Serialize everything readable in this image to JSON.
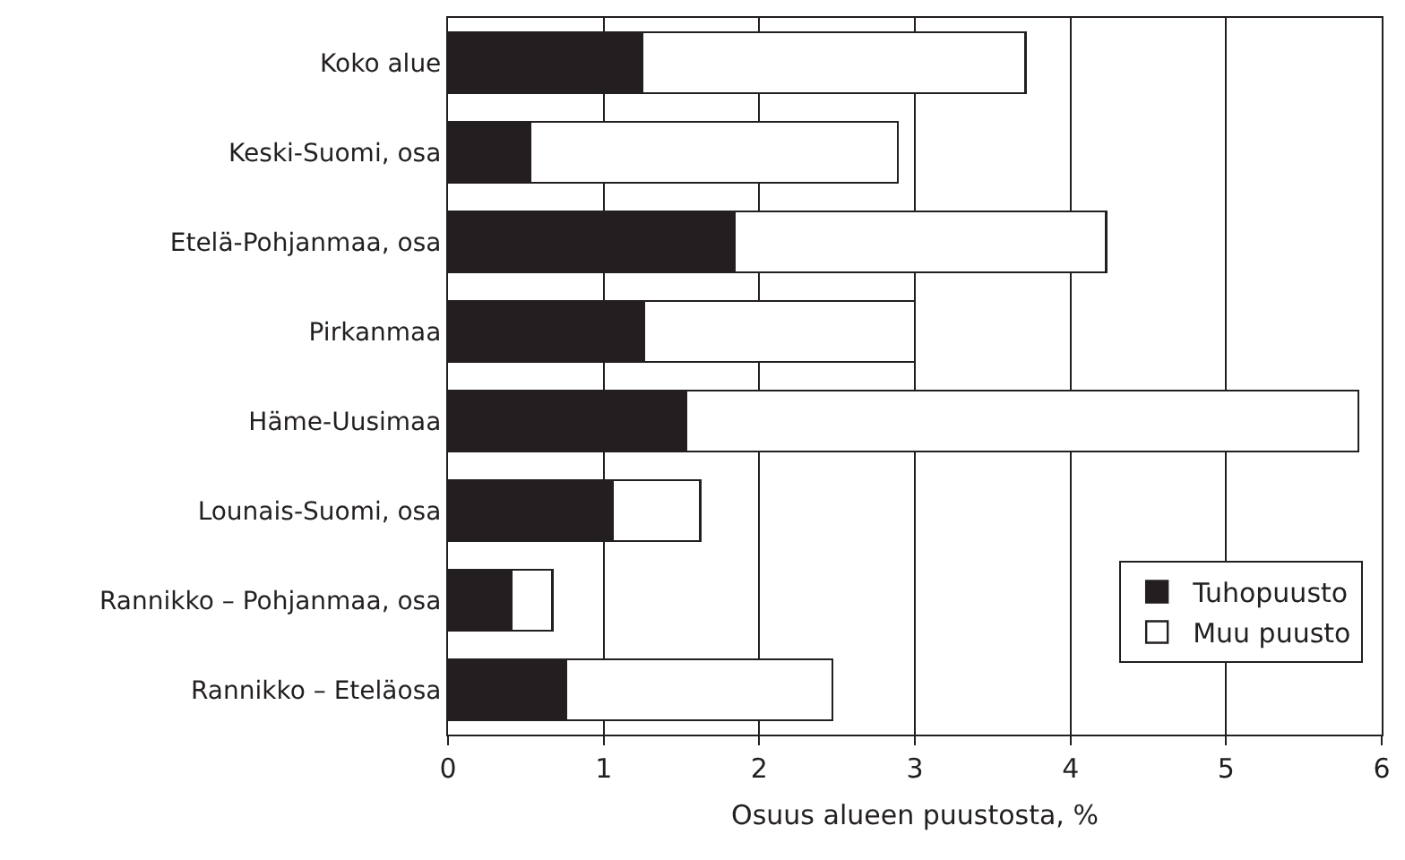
{
  "chart_data": {
    "type": "bar",
    "orientation": "horizontal",
    "stacked": true,
    "xlabel": "Osuus alueen puustosta, %",
    "categories": [
      "Koko alue",
      "Keski-Suomi, osa",
      "Etelä-Pohjanmaa, osa",
      "Pirkanmaa",
      "Häme-Uusimaa",
      "Lounais-Suomi, osa",
      "Rannikko – Pohjanmaa, osa",
      "Rannikko – Eteläosa"
    ],
    "series": [
      {
        "name": "Tuhopuusto",
        "color": "#231f20",
        "values": [
          1.25,
          0.53,
          1.84,
          1.26,
          1.53,
          1.06,
          0.41,
          0.76
        ]
      },
      {
        "name": "Muu puusto",
        "color": "#ffffff",
        "values": [
          2.46,
          2.36,
          2.39,
          1.74,
          4.32,
          0.56,
          0.26,
          1.71
        ]
      }
    ],
    "xlim": [
      0,
      6
    ],
    "xticks": [
      0,
      1,
      2,
      3,
      4,
      5,
      6
    ],
    "grid": "x",
    "legend": "bottom right"
  }
}
